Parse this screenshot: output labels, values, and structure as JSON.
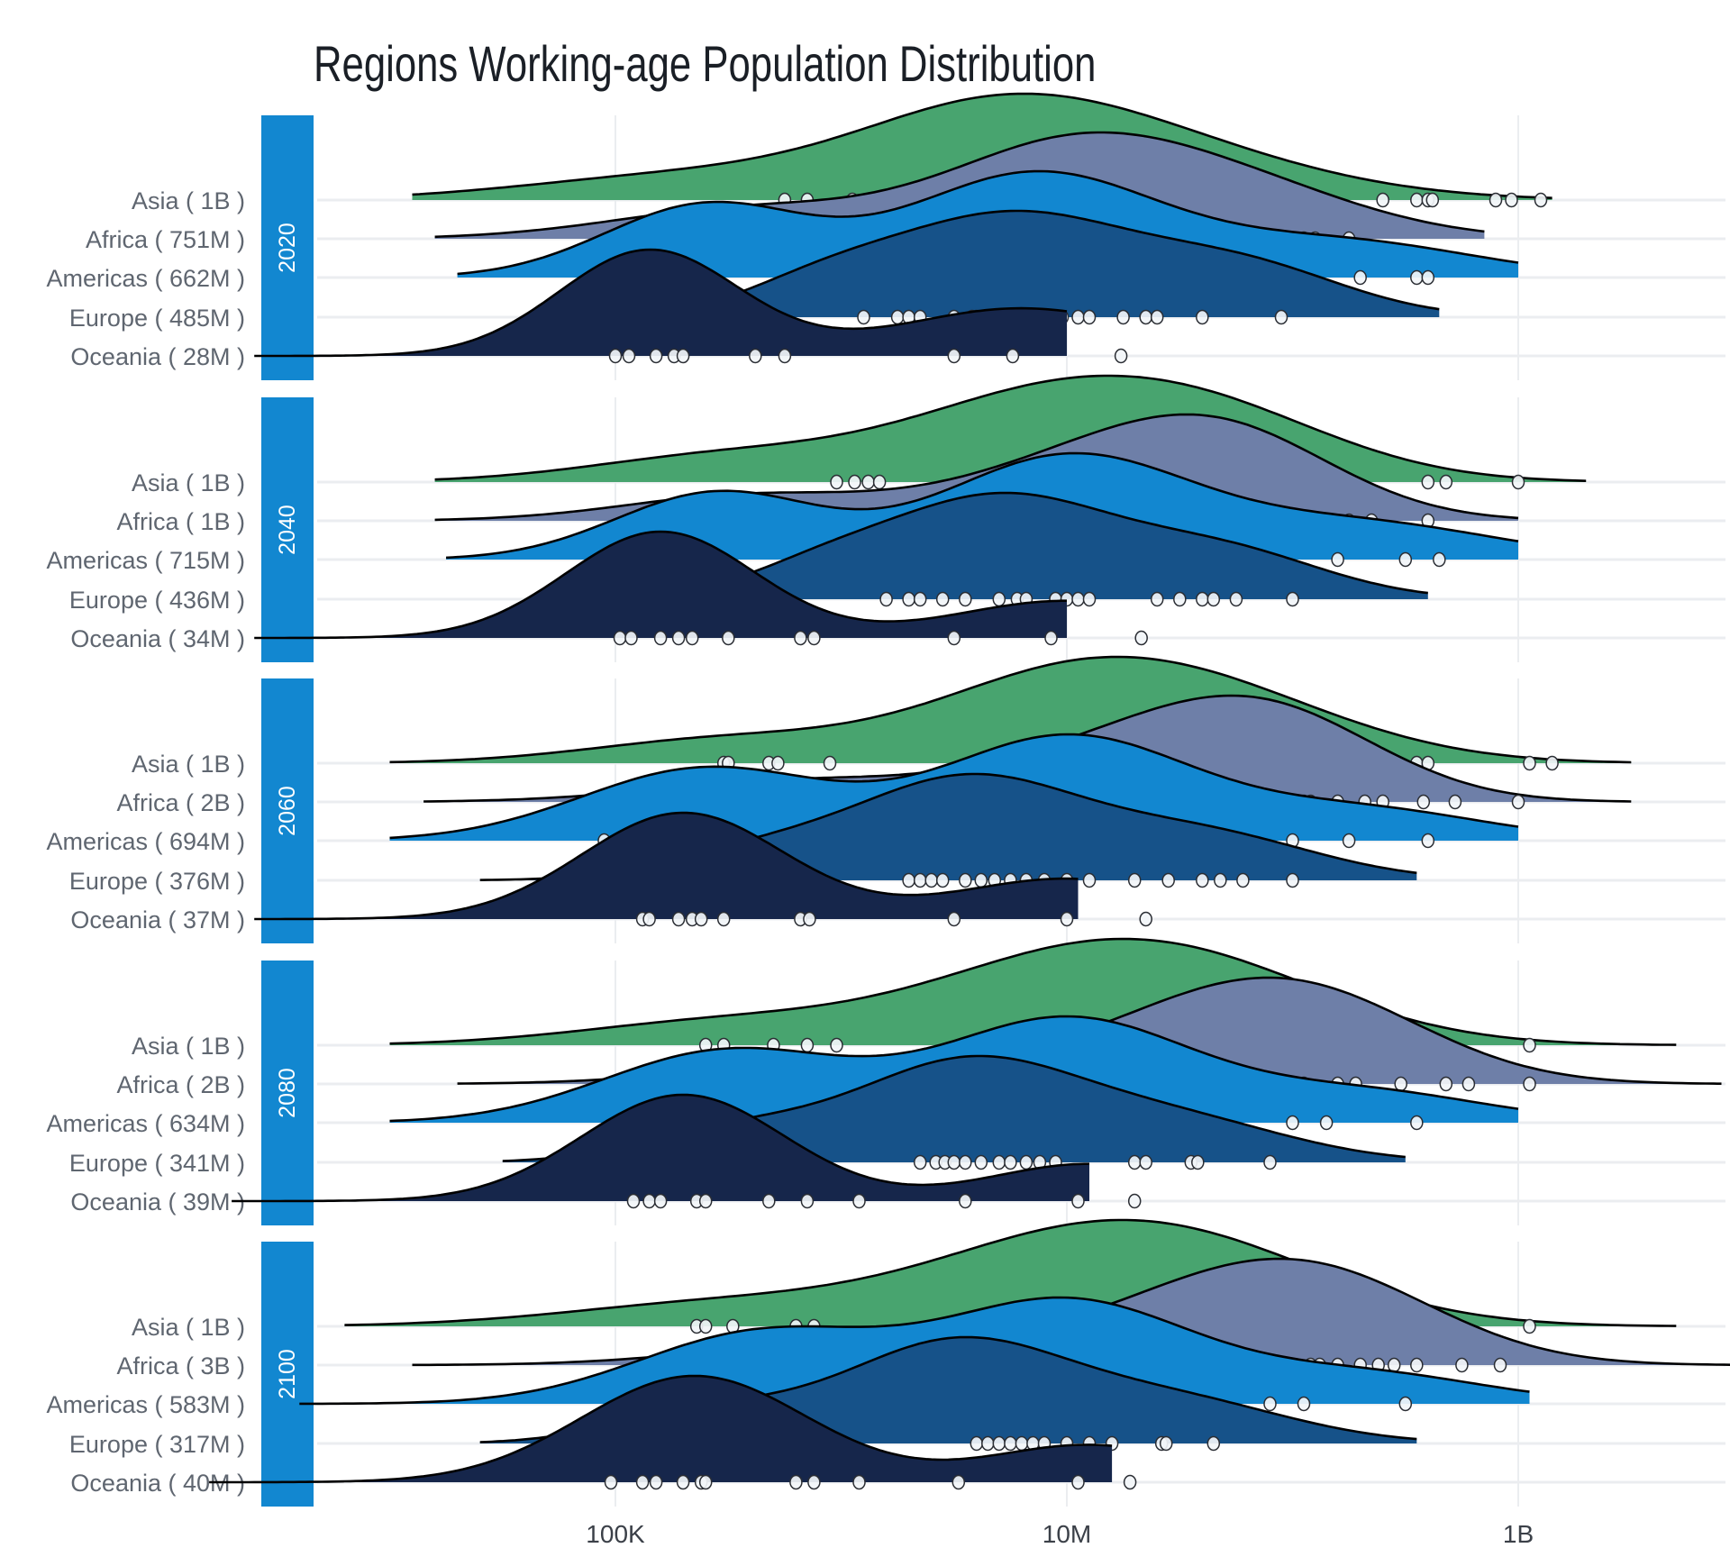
{
  "chart_data": {
    "type": "ridgeline",
    "title": "Regions Working-age Population Distribution",
    "xlabel": "",
    "ylabel": "",
    "x_scale": "log10",
    "x_ticks": [
      {
        "value": 100000,
        "label": "100K"
      },
      {
        "value": 10000000,
        "label": "10M"
      },
      {
        "value": 1000000000,
        "label": "1B"
      }
    ],
    "xlim": [
      5000,
      1000000000000
    ],
    "grid": true,
    "legend": "none",
    "region_colors": {
      "Asia": "#48a46f",
      "Africa": "#6e7fa8",
      "Americas": "#1287d0",
      "Europe": "#165289",
      "Oceania": "#16264b"
    },
    "strip_color": "#1287d0",
    "panels": [
      {
        "year": "2020",
        "rows": [
          {
            "region": "Asia",
            "total": "1B",
            "label": "Asia ( 1B )",
            "range": [
              4.1,
              9.15
            ],
            "density": [
              [
                5.3,
                0.7,
                0.35
              ],
              [
                6.6,
                0.6,
                0.8
              ],
              [
                7.2,
                0.75,
                0.9
              ]
            ],
            "points": [
              5.75,
              5.85,
              6.05,
              8.4,
              8.55,
              8.6,
              8.62,
              8.9,
              8.97,
              9.1
            ]
          },
          {
            "region": "Africa",
            "total": "751M",
            "label": "Africa ( 751M )",
            "range": [
              4.2,
              8.85
            ],
            "density": [
              [
                5.6,
                0.6,
                0.35
              ],
              [
                7.0,
                0.55,
                1.0
              ],
              [
                7.8,
                0.55,
                0.5
              ]
            ],
            "points": [
              5.0,
              5.8,
              5.85,
              5.88,
              6.0,
              6.03,
              6.08,
              7.25,
              7.3,
              7.5,
              7.58,
              7.8,
              7.85,
              8.05,
              8.1,
              8.25
            ]
          },
          {
            "region": "Americas",
            "total": "662M",
            "label": "Americas ( 662M )",
            "range": [
              4.3,
              9.0
            ],
            "density": [
              [
                5.4,
                0.45,
                0.7
              ],
              [
                6.85,
                0.55,
                1.0
              ],
              [
                8.2,
                0.6,
                0.35
              ]
            ],
            "points": [
              5.8,
              8.3,
              8.55,
              8.6
            ]
          },
          {
            "region": "Europe",
            "total": "485M",
            "label": "Europe ( 485M )",
            "range": [
              4.9,
              8.65
            ],
            "density": [
              [
                5.9,
                0.35,
                0.25
              ],
              [
                6.75,
                0.55,
                1.0
              ],
              [
                7.8,
                0.45,
                0.45
              ]
            ],
            "points": [
              6.1,
              6.25,
              6.3,
              6.35,
              6.5,
              6.58,
              6.6,
              6.75,
              6.9,
              6.98,
              7.05,
              7.1,
              7.25,
              7.35,
              7.4,
              7.6,
              7.95
            ]
          },
          {
            "region": "Oceania",
            "total": "28M",
            "label": "Oceania ( 28M )",
            "range": [
              3.4,
              7.0
            ],
            "density": [
              [
                5.15,
                0.4,
                1.0
              ],
              [
                6.8,
                0.55,
                0.45
              ]
            ],
            "points": [
              5.0,
              5.06,
              5.18,
              5.26,
              5.3,
              5.62,
              5.75,
              6.5,
              6.76,
              7.24
            ]
          }
        ]
      },
      {
        "year": "2040",
        "rows": [
          {
            "region": "Asia",
            "total": "1B",
            "label": "Asia ( 1B )",
            "range": [
              4.2,
              9.3
            ],
            "density": [
              [
                5.5,
                0.6,
                0.3
              ],
              [
                6.8,
                0.6,
                0.75
              ],
              [
                7.6,
                0.6,
                0.75
              ]
            ],
            "points": [
              5.98,
              6.06,
              6.12,
              6.17,
              8.6,
              8.68,
              9.0
            ]
          },
          {
            "region": "Africa",
            "total": "1B",
            "label": "Africa ( 1B )",
            "range": [
              4.2,
              9.0
            ],
            "density": [
              [
                5.6,
                0.55,
                0.3
              ],
              [
                7.0,
                0.55,
                0.55
              ],
              [
                7.7,
                0.5,
                0.95
              ]
            ],
            "points": [
              5.9,
              5.95,
              5.98,
              7.75,
              7.82,
              7.88,
              7.92,
              7.96,
              8.0,
              8.1,
              8.25,
              8.35,
              8.6
            ]
          },
          {
            "region": "Americas",
            "total": "715M",
            "label": "Americas ( 715M )",
            "range": [
              4.25,
              9.0
            ],
            "density": [
              [
                5.45,
                0.45,
                0.65
              ],
              [
                7.0,
                0.55,
                1.0
              ],
              [
                8.3,
                0.6,
                0.35
              ]
            ],
            "points": [
              5.9,
              8.2,
              8.5,
              8.65
            ]
          },
          {
            "region": "Europe",
            "total": "436M",
            "label": "Europe ( 436M )",
            "range": [
              4.9,
              8.6
            ],
            "density": [
              [
                5.9,
                0.35,
                0.25
              ],
              [
                6.7,
                0.5,
                1.0
              ],
              [
                7.7,
                0.45,
                0.45
              ]
            ],
            "points": [
              6.2,
              6.3,
              6.35,
              6.45,
              6.55,
              6.7,
              6.78,
              6.82,
              6.95,
              7.0,
              7.05,
              7.1,
              7.4,
              7.5,
              7.6,
              7.65,
              7.75,
              8.0
            ]
          },
          {
            "region": "Oceania",
            "total": "34M",
            "label": "Oceania ( 34M )",
            "range": [
              3.4,
              7.0
            ],
            "density": [
              [
                5.2,
                0.42,
                1.0
              ],
              [
                7.0,
                0.5,
                0.35
              ]
            ],
            "points": [
              5.02,
              5.07,
              5.2,
              5.28,
              5.34,
              5.5,
              5.82,
              5.88,
              6.5,
              6.93,
              7.33
            ]
          }
        ]
      },
      {
        "year": "2060",
        "rows": [
          {
            "region": "Asia",
            "total": "1B",
            "label": "Asia ( 1B )",
            "range": [
              4.0,
              9.5
            ],
            "density": [
              [
                5.5,
                0.6,
                0.3
              ],
              [
                6.9,
                0.6,
                0.75
              ],
              [
                7.6,
                0.65,
                0.8
              ]
            ],
            "points": [
              5.48,
              5.5,
              5.68,
              5.72,
              5.95,
              8.4,
              8.55,
              8.6,
              9.05,
              9.15
            ]
          },
          {
            "region": "Africa",
            "total": "2B",
            "label": "Africa ( 2B )",
            "range": [
              4.15,
              9.5
            ],
            "density": [
              [
                5.8,
                0.6,
                0.25
              ],
              [
                7.2,
                0.55,
                0.55
              ],
              [
                7.9,
                0.5,
                0.95
              ]
            ],
            "points": [
              7.85,
              7.88,
              7.95,
              8.05,
              8.08,
              8.2,
              8.32,
              8.4,
              8.58,
              8.72,
              9.0
            ]
          },
          {
            "region": "Americas",
            "total": "694M",
            "label": "Americas ( 694M )",
            "range": [
              4.0,
              9.0
            ],
            "density": [
              [
                5.4,
                0.55,
                0.7
              ],
              [
                7.0,
                0.55,
                1.0
              ],
              [
                8.3,
                0.55,
                0.3
              ]
            ],
            "points": [
              4.95,
              8.0,
              8.25,
              8.6
            ]
          },
          {
            "region": "Europe",
            "total": "376M",
            "label": "Europe ( 376M )",
            "range": [
              4.4,
              8.55
            ],
            "density": [
              [
                5.6,
                0.4,
                0.25
              ],
              [
                6.55,
                0.5,
                1.0
              ],
              [
                7.6,
                0.5,
                0.45
              ]
            ],
            "points": [
              5.3,
              6.3,
              6.35,
              6.4,
              6.45,
              6.55,
              6.62,
              6.68,
              6.75,
              6.82,
              6.9,
              7.0,
              7.1,
              7.3,
              7.45,
              7.6,
              7.68,
              7.78,
              8.0
            ]
          },
          {
            "region": "Oceania",
            "total": "37M",
            "label": "Oceania ( 37M )",
            "range": [
              3.4,
              7.05
            ],
            "density": [
              [
                5.3,
                0.45,
                1.0
              ],
              [
                7.0,
                0.5,
                0.38
              ]
            ],
            "points": [
              5.12,
              5.15,
              5.28,
              5.34,
              5.38,
              5.48,
              5.82,
              5.86,
              6.5,
              7.0,
              7.35
            ]
          }
        ]
      },
      {
        "year": "2080",
        "rows": [
          {
            "region": "Asia",
            "total": "1B",
            "label": "Asia ( 1B )",
            "range": [
              4.0,
              9.7
            ],
            "density": [
              [
                5.5,
                0.65,
                0.3
              ],
              [
                6.9,
                0.65,
                0.75
              ],
              [
                7.6,
                0.65,
                0.8
              ]
            ],
            "points": [
              5.4,
              5.48,
              5.7,
              5.85,
              5.98,
              8.62,
              8.66,
              9.05
            ]
          },
          {
            "region": "Africa",
            "total": "2B",
            "label": "Africa ( 2B )",
            "range": [
              4.3,
              9.9
            ],
            "density": [
              [
                6.0,
                0.6,
                0.25
              ],
              [
                7.4,
                0.55,
                0.45
              ],
              [
                8.05,
                0.55,
                1.0
              ]
            ],
            "points": [
              7.72,
              7.78,
              7.82,
              7.86,
              7.88,
              7.92,
              7.98,
              8.05,
              8.2,
              8.28,
              8.48,
              8.68,
              8.78,
              9.05
            ]
          },
          {
            "region": "Americas",
            "total": "634M",
            "label": "Americas ( 634M )",
            "range": [
              4.0,
              9.0
            ],
            "density": [
              [
                5.5,
                0.55,
                0.7
              ],
              [
                7.0,
                0.55,
                1.0
              ],
              [
                8.3,
                0.55,
                0.3
              ]
            ],
            "points": [
              8.0,
              8.15,
              8.55
            ]
          },
          {
            "region": "Europe",
            "total": "341M",
            "label": "Europe ( 341M )",
            "range": [
              4.5,
              8.5
            ],
            "density": [
              [
                5.5,
                0.4,
                0.3
              ],
              [
                6.55,
                0.5,
                1.0
              ],
              [
                7.5,
                0.5,
                0.4
              ]
            ],
            "points": [
              6.35,
              6.42,
              6.46,
              6.5,
              6.55,
              6.62,
              6.7,
              6.75,
              6.82,
              6.88,
              6.95,
              7.3,
              7.35,
              7.55,
              7.58,
              7.9
            ]
          },
          {
            "region": "Oceania",
            "total": "39M",
            "label": "Oceania ( 39M )",
            "range": [
              3.3,
              7.1
            ],
            "density": [
              [
                5.3,
                0.45,
                1.0
              ],
              [
                7.1,
                0.45,
                0.35
              ]
            ],
            "points": [
              5.08,
              5.15,
              5.2,
              5.36,
              5.4,
              5.68,
              5.85,
              6.08,
              6.55,
              7.05,
              7.3
            ]
          }
        ]
      },
      {
        "year": "2100",
        "rows": [
          {
            "region": "Asia",
            "total": "1B",
            "label": "Asia ( 1B )",
            "range": [
              3.8,
              9.7
            ],
            "density": [
              [
                5.5,
                0.7,
                0.3
              ],
              [
                6.9,
                0.65,
                0.75
              ],
              [
                7.6,
                0.65,
                0.8
              ]
            ],
            "points": [
              5.36,
              5.4,
              5.52,
              5.8,
              5.88,
              9.05
            ]
          },
          {
            "region": "Africa",
            "total": "3B",
            "label": "Africa ( 3B )",
            "range": [
              4.1,
              10.1
            ],
            "density": [
              [
                6.0,
                0.6,
                0.25
              ],
              [
                7.4,
                0.55,
                0.45
              ],
              [
                8.1,
                0.55,
                1.0
              ]
            ],
            "points": [
              7.72,
              7.78,
              7.82,
              7.86,
              7.9,
              7.95,
              8.0,
              8.08,
              8.12,
              8.2,
              8.3,
              8.38,
              8.45,
              8.55,
              8.75,
              8.92
            ]
          },
          {
            "region": "Americas",
            "total": "583M",
            "label": "Americas ( 583M )",
            "range": [
              3.6,
              9.05
            ],
            "density": [
              [
                5.65,
                0.55,
                0.7
              ],
              [
                7.0,
                0.55,
                1.0
              ],
              [
                8.3,
                0.55,
                0.3
              ]
            ],
            "points": [
              7.9,
              8.05,
              8.5
            ]
          },
          {
            "region": "Europe",
            "total": "317M",
            "label": "Europe ( 317M )",
            "range": [
              4.4,
              8.55
            ],
            "density": [
              [
                5.4,
                0.4,
                0.3
              ],
              [
                6.5,
                0.5,
                1.0
              ],
              [
                7.5,
                0.5,
                0.4
              ]
            ],
            "points": [
              6.6,
              6.65,
              6.7,
              6.75,
              6.8,
              6.85,
              6.9,
              7.0,
              7.1,
              7.2,
              7.42,
              7.44,
              7.65
            ]
          },
          {
            "region": "Oceania",
            "total": "40M",
            "label": "Oceania ( 40M )",
            "range": [
              3.2,
              7.2
            ],
            "density": [
              [
                5.35,
                0.5,
                1.0
              ],
              [
                7.1,
                0.45,
                0.35
              ]
            ],
            "points": [
              4.98,
              5.12,
              5.18,
              5.3,
              5.38,
              5.4,
              5.8,
              5.88,
              6.08,
              6.52,
              7.05,
              7.28
            ]
          }
        ]
      }
    ]
  }
}
